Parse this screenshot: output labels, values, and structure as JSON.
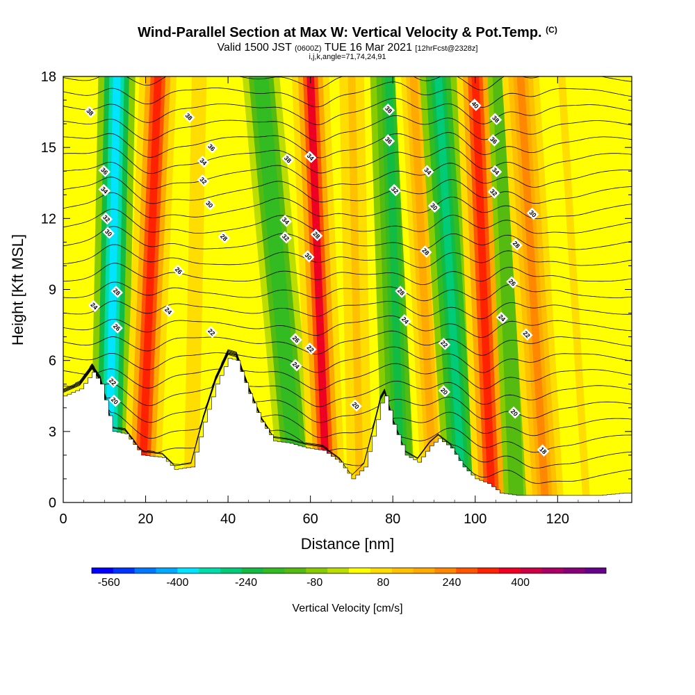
{
  "header": {
    "title": "Wind-Parallel Section at Max W: Vertical Velocity & Pot.Temp.",
    "copyright": "(C)",
    "valid_a": "Valid 1500 JST",
    "valid_utc": "(0600Z)",
    "valid_b": "TUE 16 Mar 2021",
    "forecast": "[12hrFcst@2328z]",
    "indices": "i,j,k,angle=71,74,24,91"
  },
  "chart_data": {
    "type": "heatmap",
    "xlabel": "Distance [nm]",
    "ylabel": "Height [Kft MSL]",
    "xlim": [
      0,
      138
    ],
    "ylim": [
      0,
      18
    ],
    "x_ticks": [
      0,
      20,
      40,
      60,
      80,
      100,
      120
    ],
    "y_ticks": [
      0,
      3,
      6,
      9,
      12,
      15,
      18
    ],
    "colorbar": {
      "title": "Vertical Velocity [cm/s]",
      "tick_labels": [
        "-560",
        "-400",
        "-240",
        "-80",
        "80",
        "240",
        "400"
      ],
      "tick_values": [
        -560,
        -400,
        -240,
        -80,
        80,
        240,
        400
      ],
      "colors": [
        "#0000ff",
        "#0033ff",
        "#0077ff",
        "#00aaff",
        "#00e5ff",
        "#00ddaa",
        "#00cc77",
        "#11bb44",
        "#33bb22",
        "#55bb11",
        "#88cc00",
        "#bbdd00",
        "#ffff00",
        "#ffdd00",
        "#ffc000",
        "#ffaa00",
        "#ff8800",
        "#ff5500",
        "#ff2200",
        "#ee0022",
        "#cc0044",
        "#aa0066",
        "#880077",
        "#660088"
      ]
    },
    "vertical_velocity_bands": [
      {
        "x_base": 11,
        "x_top": 13,
        "w_cm_s": -400
      },
      {
        "x_base": 19,
        "x_top": 23,
        "w_cm_s": 330
      },
      {
        "x_base": 31,
        "x_top": 33,
        "w_cm_s": 80
      },
      {
        "x_base": 57,
        "x_top": 48,
        "w_cm_s": -200
      },
      {
        "x_base": 64,
        "x_top": 60,
        "w_cm_s": 360
      },
      {
        "x_base": 72,
        "x_top": 70,
        "w_cm_s": 100
      },
      {
        "x_base": 82,
        "x_top": 79,
        "w_cm_s": -210
      },
      {
        "x_base": 90,
        "x_top": 85,
        "w_cm_s": 160
      },
      {
        "x_base": 97,
        "x_top": 91,
        "w_cm_s": -280
      },
      {
        "x_base": 104,
        "x_top": 100,
        "w_cm_s": 340
      },
      {
        "x_base": 110,
        "x_top": 106,
        "w_cm_s": -140
      },
      {
        "x_base": 117,
        "x_top": 111,
        "w_cm_s": 220
      },
      {
        "x_base": 127,
        "x_top": 121,
        "w_cm_s": 60
      }
    ],
    "terrain_height_kft": [
      [
        0,
        4.5
      ],
      [
        4,
        4.8
      ],
      [
        7,
        5.5
      ],
      [
        9,
        5.0
      ],
      [
        12,
        3.0
      ],
      [
        15,
        2.9
      ],
      [
        19,
        2.0
      ],
      [
        24,
        1.9
      ],
      [
        27,
        1.4
      ],
      [
        31,
        1.5
      ],
      [
        34,
        3.4
      ],
      [
        37,
        5.0
      ],
      [
        40,
        6.1
      ],
      [
        42,
        6.0
      ],
      [
        45,
        4.6
      ],
      [
        48,
        3.4
      ],
      [
        51,
        2.6
      ],
      [
        55,
        2.5
      ],
      [
        59,
        2.3
      ],
      [
        63,
        2.2
      ],
      [
        67,
        1.7
      ],
      [
        70,
        1.0
      ],
      [
        73,
        1.5
      ],
      [
        75,
        2.8
      ],
      [
        77,
        4.2
      ],
      [
        78,
        4.5
      ],
      [
        80,
        3.3
      ],
      [
        83,
        2.0
      ],
      [
        86,
        1.7
      ],
      [
        89,
        2.4
      ],
      [
        91,
        2.7
      ],
      [
        94,
        2.3
      ],
      [
        97,
        1.5
      ],
      [
        100,
        1.0
      ],
      [
        103,
        0.8
      ],
      [
        106,
        0.4
      ],
      [
        110,
        0.3
      ],
      [
        120,
        0.3
      ],
      [
        130,
        0.3
      ],
      [
        136,
        0.4
      ]
    ],
    "potential_temperature_labels": [
      {
        "x": 6.5,
        "z": 16.5,
        "text": "38"
      },
      {
        "x": 30.5,
        "z": 16.3,
        "text": "38"
      },
      {
        "x": 36,
        "z": 15.0,
        "text": "36"
      },
      {
        "x": 34,
        "z": 14.4,
        "text": "34"
      },
      {
        "x": 34,
        "z": 13.6,
        "text": "32"
      },
      {
        "x": 35.5,
        "z": 12.6,
        "text": "30"
      },
      {
        "x": 39,
        "z": 11.2,
        "text": "28"
      },
      {
        "x": 28,
        "z": 9.8,
        "text": "26"
      },
      {
        "x": 25.5,
        "z": 8.1,
        "text": "24"
      },
      {
        "x": 36,
        "z": 7.2,
        "text": "22"
      },
      {
        "x": 10,
        "z": 14.0,
        "text": "36"
      },
      {
        "x": 10,
        "z": 13.2,
        "text": "34"
      },
      {
        "x": 10.5,
        "z": 12.0,
        "text": "32"
      },
      {
        "x": 11,
        "z": 11.4,
        "text": "30"
      },
      {
        "x": 13,
        "z": 8.9,
        "text": "28"
      },
      {
        "x": 7.5,
        "z": 8.3,
        "text": "24"
      },
      {
        "x": 13,
        "z": 7.4,
        "text": "26"
      },
      {
        "x": 12,
        "z": 5.1,
        "text": "22"
      },
      {
        "x": 12.5,
        "z": 4.3,
        "text": "20"
      },
      {
        "x": 54.5,
        "z": 14.5,
        "text": "38"
      },
      {
        "x": 60,
        "z": 14.6,
        "text": "34"
      },
      {
        "x": 54,
        "z": 11.9,
        "text": "34"
      },
      {
        "x": 54,
        "z": 11.2,
        "text": "32"
      },
      {
        "x": 61.5,
        "z": 11.3,
        "text": "28"
      },
      {
        "x": 59.5,
        "z": 10.4,
        "text": "30"
      },
      {
        "x": 56.5,
        "z": 6.9,
        "text": "26"
      },
      {
        "x": 60,
        "z": 6.5,
        "text": "22"
      },
      {
        "x": 56.5,
        "z": 5.8,
        "text": "24"
      },
      {
        "x": 71,
        "z": 4.1,
        "text": "20"
      },
      {
        "x": 79,
        "z": 16.6,
        "text": "38"
      },
      {
        "x": 79,
        "z": 15.3,
        "text": "36"
      },
      {
        "x": 88.5,
        "z": 14.0,
        "text": "34"
      },
      {
        "x": 80.5,
        "z": 13.2,
        "text": "32"
      },
      {
        "x": 90,
        "z": 12.5,
        "text": "30"
      },
      {
        "x": 88,
        "z": 10.6,
        "text": "28"
      },
      {
        "x": 82,
        "z": 8.9,
        "text": "28"
      },
      {
        "x": 83,
        "z": 7.7,
        "text": "24"
      },
      {
        "x": 92.5,
        "z": 6.7,
        "text": "22"
      },
      {
        "x": 92.5,
        "z": 4.7,
        "text": "20"
      },
      {
        "x": 100,
        "z": 16.8,
        "text": "40"
      },
      {
        "x": 105,
        "z": 16.2,
        "text": "38"
      },
      {
        "x": 104.5,
        "z": 15.3,
        "text": "36"
      },
      {
        "x": 105,
        "z": 14.0,
        "text": "34"
      },
      {
        "x": 104.5,
        "z": 13.1,
        "text": "32"
      },
      {
        "x": 114,
        "z": 12.2,
        "text": "30"
      },
      {
        "x": 110,
        "z": 10.9,
        "text": "28"
      },
      {
        "x": 109,
        "z": 9.3,
        "text": "26"
      },
      {
        "x": 106.5,
        "z": 7.8,
        "text": "24"
      },
      {
        "x": 112.5,
        "z": 7.1,
        "text": "22"
      },
      {
        "x": 109.5,
        "z": 3.8,
        "text": "20"
      },
      {
        "x": 116.5,
        "z": 2.2,
        "text": "18"
      }
    ]
  }
}
